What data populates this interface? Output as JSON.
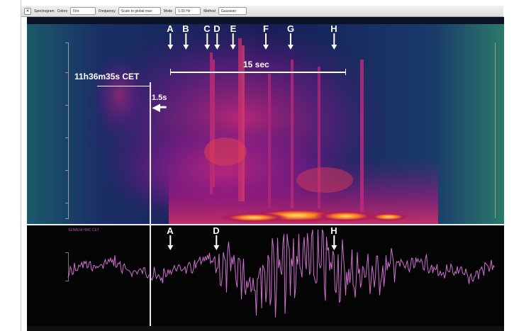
{
  "toolbar": {
    "close_label": "✕",
    "spectrogram_label": "Spectrogram",
    "colors_label": "Colors",
    "colors_value": "Fire",
    "frequency_label": "Frequency",
    "frequency_value": "Scale to global max",
    "mode_label": "Mode",
    "mode_value": "1.00 Hz",
    "method_label": "Method",
    "method_value": "Gaussian"
  },
  "spectrogram": {
    "time_label": "11h36m35s CET",
    "offset_label": "1.5s",
    "interval_label": "15 sec",
    "markers": [
      {
        "label": "A"
      },
      {
        "label": "B"
      },
      {
        "label": "C"
      },
      {
        "label": "D"
      },
      {
        "label": "E"
      },
      {
        "label": "F"
      },
      {
        "label": "G"
      },
      {
        "label": "H"
      }
    ]
  },
  "waveform": {
    "title": "SEIMEIA HMC CET",
    "markers": [
      {
        "label": "A"
      },
      {
        "label": "D"
      },
      {
        "label": "H"
      }
    ]
  },
  "colors": {
    "spectrogram_bg": "#0e1530",
    "waveform_line": "#d070d0",
    "annotation": "#ffffff"
  }
}
